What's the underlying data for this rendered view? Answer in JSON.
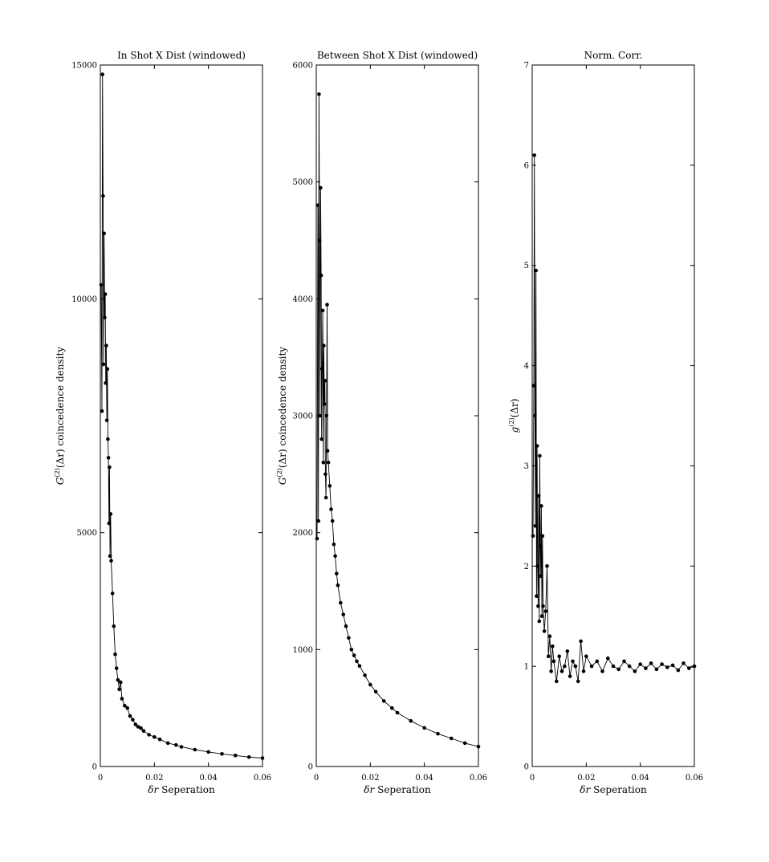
{
  "chart_data": [
    {
      "type": "line",
      "title": "In Shot X Dist (windowed)",
      "xlabel_var": "δr",
      "xlabel_text": "Seperation",
      "ylabel_var": "G",
      "ylabel_sup": "(2)",
      "ylabel_arg": "(Δr)",
      "ylabel_text": "coincedence density",
      "xlim": [
        0,
        0.06
      ],
      "ylim": [
        0,
        15000
      ],
      "xticks": [
        "0",
        "0.02",
        "0.04",
        "0.06"
      ],
      "yticks": [
        "0",
        "5000",
        "10000",
        "15000"
      ],
      "series": [
        {
          "marker": "dot",
          "x": [
            0.0003,
            0.0006,
            0.0008,
            0.001,
            0.0012,
            0.0014,
            0.0016,
            0.0018,
            0.002,
            0.0022,
            0.0024,
            0.0026,
            0.0028,
            0.003,
            0.0032,
            0.0034,
            0.0036,
            0.0038,
            0.004,
            0.0045,
            0.005,
            0.0055,
            0.006,
            0.0065,
            0.007,
            0.0075,
            0.008,
            0.009,
            0.01,
            0.011,
            0.012,
            0.013,
            0.014,
            0.015,
            0.016,
            0.018,
            0.02,
            0.022,
            0.025,
            0.028,
            0.03,
            0.035,
            0.04,
            0.045,
            0.05,
            0.055,
            0.06
          ],
          "y": [
            10300,
            7600,
            14800,
            12200,
            8600,
            11400,
            9600,
            10100,
            8200,
            9000,
            7400,
            8500,
            7000,
            6600,
            5200,
            6400,
            4500,
            5400,
            4400,
            3700,
            3000,
            2400,
            2100,
            1850,
            1650,
            1800,
            1450,
            1300,
            1250,
            1080,
            1000,
            900,
            850,
            820,
            760,
            680,
            630,
            580,
            500,
            460,
            420,
            360,
            310,
            270,
            235,
            200,
            180
          ]
        }
      ]
    },
    {
      "type": "line",
      "title": "Between Shot X Dist (windowed)",
      "xlabel_var": "δr",
      "xlabel_text": "Seperation",
      "ylabel_var": "G",
      "ylabel_sup": "(2)",
      "ylabel_arg": "(Δr)",
      "ylabel_text": "coincedence density",
      "xlim": [
        0,
        0.06
      ],
      "ylim": [
        0,
        6000
      ],
      "xticks": [
        "0",
        "0.02",
        "0.04",
        "0.06"
      ],
      "yticks": [
        "0",
        "1000",
        "2000",
        "3000",
        "4000",
        "5000",
        "6000"
      ],
      "series": [
        {
          "marker": "dot",
          "x": [
            0.0003,
            0.0006,
            0.0008,
            0.001,
            0.0012,
            0.0014,
            0.0016,
            0.0018,
            0.002,
            0.0022,
            0.0024,
            0.0026,
            0.0028,
            0.003,
            0.0032,
            0.0034,
            0.0036,
            0.0038,
            0.004,
            0.0042,
            0.0045,
            0.005,
            0.0055,
            0.006,
            0.0065,
            0.007,
            0.0075,
            0.008,
            0.009,
            0.01,
            0.011,
            0.012,
            0.013,
            0.014,
            0.015,
            0.016,
            0.018,
            0.02,
            0.022,
            0.025,
            0.028,
            0.03,
            0.035,
            0.04,
            0.045,
            0.05,
            0.055,
            0.06
          ],
          "y": [
            1950,
            4800,
            2100,
            5750,
            4500,
            3000,
            4950,
            4200,
            2800,
            3400,
            3900,
            2600,
            3600,
            3100,
            3300,
            2500,
            2300,
            3000,
            3950,
            2700,
            2600,
            2400,
            2200,
            2100,
            1900,
            1800,
            1650,
            1550,
            1400,
            1300,
            1200,
            1100,
            1000,
            950,
            900,
            860,
            780,
            700,
            640,
            560,
            500,
            460,
            390,
            330,
            280,
            240,
            200,
            170
          ]
        }
      ]
    },
    {
      "type": "line",
      "title": "Norm. Corr.",
      "xlabel_var": "δr",
      "xlabel_text": "Seperation",
      "ylabel_var": "g",
      "ylabel_sup": "(2)",
      "ylabel_arg": "(Δr)",
      "ylabel_text": "",
      "xlim": [
        0,
        0.06
      ],
      "ylim": [
        0,
        7
      ],
      "xticks": [
        "0",
        "0.02",
        "0.04",
        "0.06"
      ],
      "yticks": [
        "0",
        "1",
        "2",
        "3",
        "4",
        "5",
        "6",
        "7"
      ],
      "series": [
        {
          "marker": "dot",
          "x": [
            0.0003,
            0.0006,
            0.0008,
            0.001,
            0.0012,
            0.0014,
            0.0016,
            0.0018,
            0.002,
            0.0022,
            0.0024,
            0.0026,
            0.0028,
            0.003,
            0.0032,
            0.0034,
            0.0036,
            0.0038,
            0.004,
            0.0045,
            0.005,
            0.0055,
            0.006,
            0.0065,
            0.007,
            0.0075,
            0.008,
            0.009,
            0.01,
            0.011,
            0.012,
            0.013,
            0.014,
            0.015,
            0.016,
            0.017,
            0.018,
            0.019,
            0.02,
            0.022,
            0.024,
            0.026,
            0.028,
            0.03,
            0.032,
            0.034,
            0.036,
            0.038,
            0.04,
            0.042,
            0.044,
            0.046,
            0.048,
            0.05,
            0.052,
            0.054,
            0.056,
            0.058,
            0.06
          ],
          "y": [
            2.3,
            3.8,
            6.1,
            3.5,
            2.4,
            4.95,
            1.7,
            3.2,
            2.0,
            1.6,
            2.7,
            1.45,
            3.1,
            2.2,
            1.9,
            2.6,
            1.5,
            2.3,
            1.6,
            1.35,
            1.55,
            2.0,
            1.1,
            1.3,
            0.95,
            1.2,
            1.05,
            0.85,
            1.1,
            0.95,
            1.0,
            1.15,
            0.9,
            1.05,
            1.0,
            0.85,
            1.25,
            0.95,
            1.1,
            1.0,
            1.05,
            0.95,
            1.08,
            1.0,
            0.97,
            1.05,
            1.0,
            0.95,
            1.02,
            0.98,
            1.03,
            0.97,
            1.02,
            0.99,
            1.01,
            0.96,
            1.03,
            0.98,
            1.0
          ]
        }
      ]
    }
  ]
}
